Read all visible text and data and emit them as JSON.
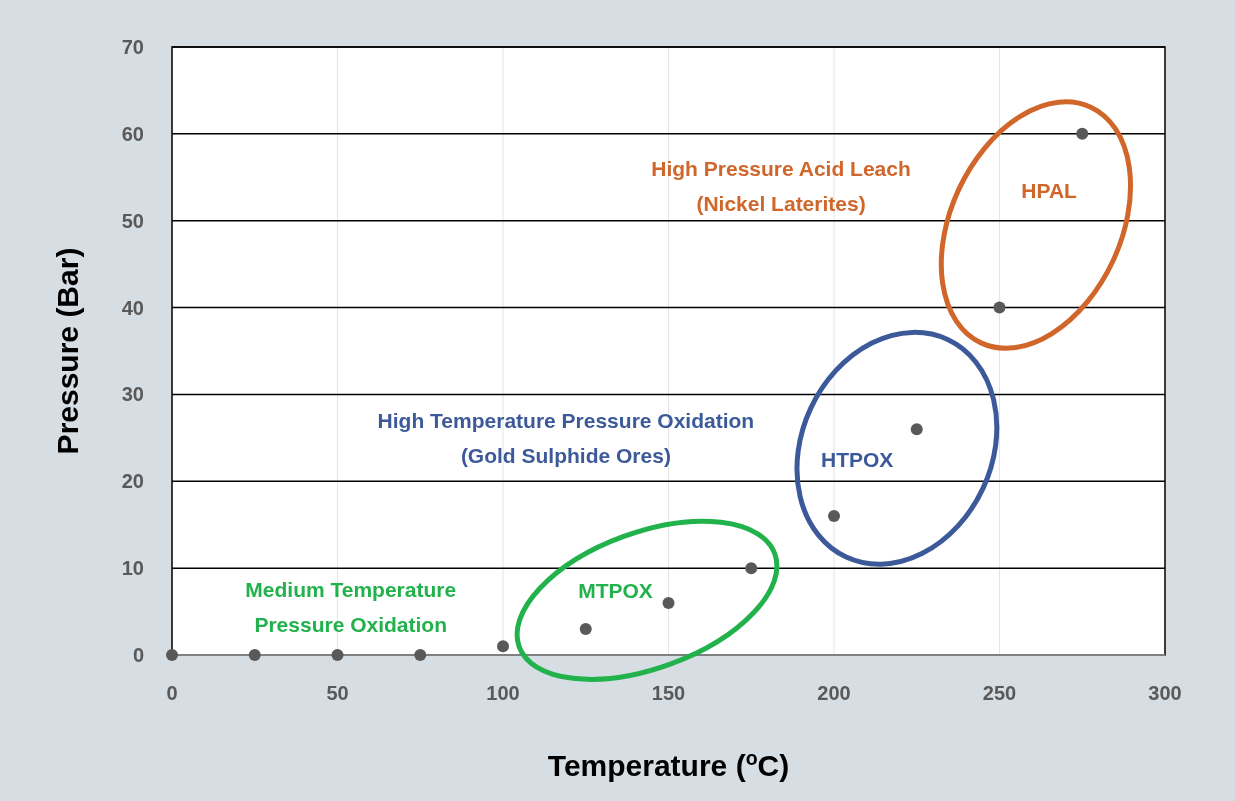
{
  "chart_data": {
    "type": "scatter",
    "xlabel": "Temperature ($^{o}$C)",
    "ylabel": "Pressure (Bar)",
    "x": [
      0,
      25,
      50,
      75,
      100,
      125,
      150,
      175,
      200,
      225,
      250,
      275
    ],
    "values": [
      0,
      0,
      0,
      0,
      1,
      3,
      6,
      10,
      16,
      26,
      40,
      60
    ],
    "color": "#595959",
    "marker": "circle",
    "xlim": [
      0,
      300
    ],
    "xticks": [
      0,
      50,
      100,
      150,
      200,
      250,
      300
    ],
    "ylim": [
      0,
      70
    ],
    "yticks": [
      0,
      10,
      20,
      30,
      40,
      50,
      60,
      70
    ],
    "grid": true,
    "annotations": [
      "High Pressure Acid Leach\n(Nickel Laterites)",
      "HPAL",
      "High Temperature Pressure Oxidation\n(Gold Sulphide Ores)",
      "HTPOX",
      "Medium Temperature\nPressure Oxidation",
      "MTPOX"
    ]
  }
}
